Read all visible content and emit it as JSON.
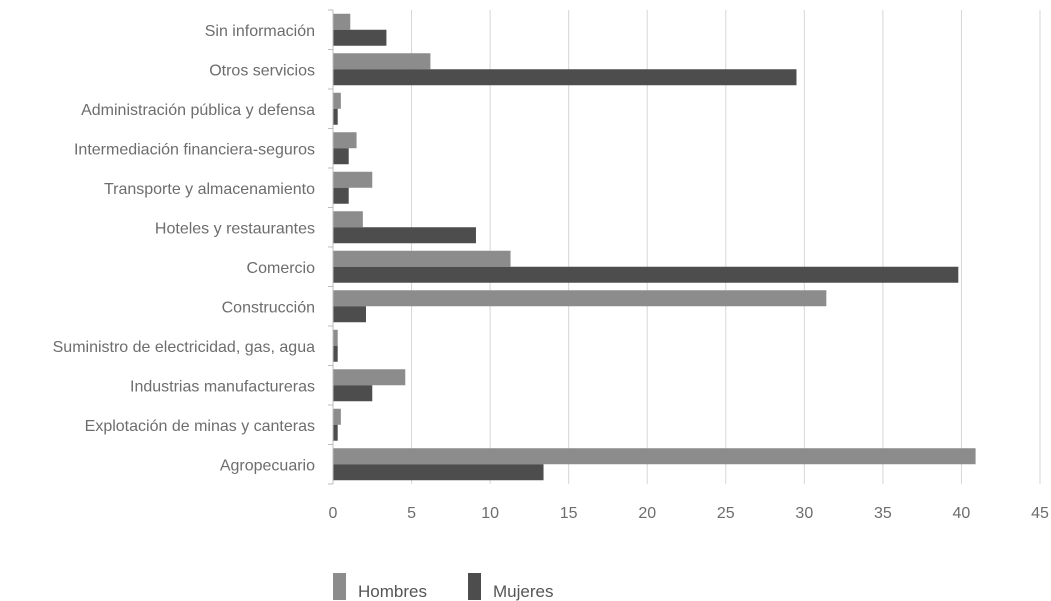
{
  "chart_data": {
    "type": "bar",
    "orientation": "horizontal",
    "categories": [
      "Sin información",
      "Otros servicios",
      "Administración pública y defensa",
      "Intermediación financiera-seguros",
      "Transporte y almacenamiento",
      "Hoteles y restaurantes",
      "Comercio",
      "Construcción",
      "Suministro de electricidad, gas, agua",
      "Industrias manufactureras",
      "Explotación de minas y canteras",
      "Agropecuario"
    ],
    "series": [
      {
        "name": "Hombres",
        "color": "#8c8c8c",
        "values": [
          1.1,
          6.2,
          0.5,
          1.5,
          2.5,
          1.9,
          11.3,
          31.4,
          0.3,
          4.6,
          0.5,
          40.9
        ]
      },
      {
        "name": "Mujeres",
        "color": "#4d4d4d",
        "values": [
          3.4,
          29.5,
          0.3,
          1.0,
          1.0,
          9.1,
          39.8,
          2.1,
          0.3,
          2.5,
          0.3,
          13.4
        ]
      }
    ],
    "xlim": [
      0,
      45
    ],
    "xticks": [
      "0",
      "5",
      "10",
      "15",
      "20",
      "25",
      "30",
      "35",
      "40",
      "45"
    ],
    "grid": "vertical",
    "legend_position": "bottom-center",
    "title": "",
    "xlabel": "",
    "ylabel": ""
  }
}
